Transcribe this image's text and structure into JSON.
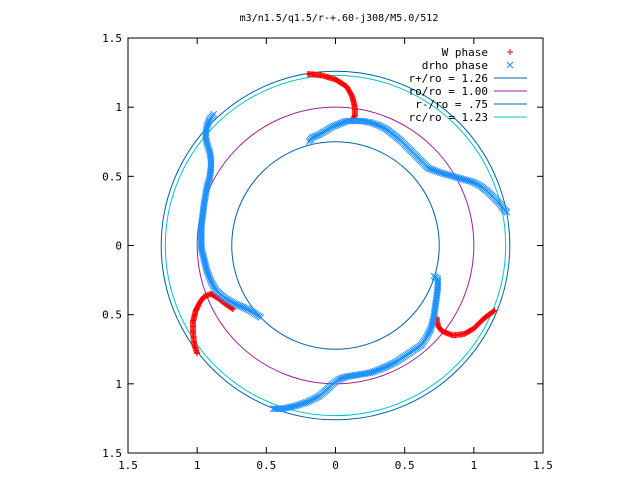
{
  "chart_data": {
    "type": "scatter",
    "title": "m3/n1.5/q1.5/r-+.60-j308/M5.0/512",
    "xlabel": "",
    "ylabel": "",
    "xlim": [
      -1.5,
      1.5
    ],
    "ylim": [
      -1.5,
      1.5
    ],
    "grid": false,
    "legend_position": "top-right",
    "x_ticks": [
      {
        "value": -1.5,
        "label": "1.5"
      },
      {
        "value": -1.0,
        "label": "1"
      },
      {
        "value": -0.5,
        "label": "0.5"
      },
      {
        "value": 0.0,
        "label": "0"
      },
      {
        "value": 0.5,
        "label": "0.5"
      },
      {
        "value": 1.0,
        "label": "1"
      },
      {
        "value": 1.5,
        "label": "1.5"
      }
    ],
    "y_ticks": [
      {
        "value": 1.5,
        "label": "1.5"
      },
      {
        "value": 1.0,
        "label": "1"
      },
      {
        "value": 0.5,
        "label": "0.5"
      },
      {
        "value": 0.0,
        "label": "0"
      },
      {
        "value": -0.5,
        "label": "0.5"
      },
      {
        "value": -1.0,
        "label": "1"
      },
      {
        "value": -1.5,
        "label": "1.5"
      }
    ],
    "circles": [
      {
        "label": "r+/ro = 1.26",
        "radius": 1.26,
        "color": "#0060ad"
      },
      {
        "label": "ro/ro = 1.00",
        "radius": 1.0,
        "color": "#a020a0"
      },
      {
        "label": "r-/ro = .75",
        "radius": 0.75,
        "color": "#0060ad"
      },
      {
        "label": "rc/ro = 1.23",
        "radius": 1.23,
        "color": "#00c8c8"
      }
    ],
    "series": [
      {
        "name": "W phase",
        "marker": "plus",
        "color": "#ff0000",
        "arms": [
          [
            [
              -0.2,
              1.24
            ],
            [
              -0.1,
              1.23
            ],
            [
              0.0,
              1.2
            ],
            [
              0.08,
              1.15
            ],
            [
              0.12,
              1.08
            ],
            [
              0.14,
              1.0
            ],
            [
              0.14,
              0.94
            ],
            [
              0.12,
              0.9
            ]
          ],
          [
            [
              1.15,
              -0.47
            ],
            [
              1.07,
              -0.53
            ],
            [
              1.0,
              -0.6
            ],
            [
              0.93,
              -0.64
            ],
            [
              0.85,
              -0.65
            ],
            [
              0.77,
              -0.62
            ],
            [
              0.74,
              -0.58
            ],
            [
              0.73,
              -0.52
            ]
          ],
          [
            [
              -1.0,
              -0.78
            ],
            [
              -1.02,
              -0.72
            ],
            [
              -1.03,
              -0.63
            ],
            [
              -1.03,
              -0.55
            ],
            [
              -1.01,
              -0.47
            ],
            [
              -0.98,
              -0.41
            ],
            [
              -0.95,
              -0.37
            ],
            [
              -0.9,
              -0.35
            ],
            [
              -0.85,
              -0.38
            ],
            [
              -0.8,
              -0.42
            ],
            [
              -0.74,
              -0.46
            ]
          ]
        ]
      },
      {
        "name": "drho phase",
        "marker": "cross",
        "color": "#1e90ff",
        "arms": [
          [
            [
              -0.19,
              0.75
            ],
            [
              -0.17,
              0.78
            ],
            [
              -0.12,
              0.8
            ],
            [
              -0.07,
              0.83
            ],
            [
              -0.02,
              0.86
            ],
            [
              0.03,
              0.88
            ],
            [
              0.08,
              0.9
            ],
            [
              0.13,
              0.9
            ],
            [
              0.19,
              0.9
            ],
            [
              0.25,
              0.89
            ],
            [
              0.31,
              0.87
            ],
            [
              0.37,
              0.84
            ],
            [
              0.42,
              0.8
            ],
            [
              0.47,
              0.76
            ],
            [
              0.52,
              0.71
            ],
            [
              0.57,
              0.66
            ],
            [
              0.62,
              0.61
            ],
            [
              0.67,
              0.56
            ],
            [
              0.72,
              0.54
            ],
            [
              0.78,
              0.52
            ],
            [
              0.85,
              0.5
            ],
            [
              0.92,
              0.48
            ],
            [
              0.99,
              0.46
            ],
            [
              1.05,
              0.43
            ],
            [
              1.1,
              0.39
            ],
            [
              1.14,
              0.35
            ],
            [
              1.18,
              0.31
            ],
            [
              1.21,
              0.27
            ],
            [
              1.24,
              0.24
            ]
          ],
          [
            [
              0.71,
              -0.22
            ],
            [
              0.74,
              -0.24
            ],
            [
              0.74,
              -0.3
            ],
            [
              0.73,
              -0.38
            ],
            [
              0.72,
              -0.45
            ],
            [
              0.71,
              -0.52
            ],
            [
              0.69,
              -0.6
            ],
            [
              0.66,
              -0.66
            ],
            [
              0.62,
              -0.72
            ],
            [
              0.56,
              -0.76
            ],
            [
              0.5,
              -0.8
            ],
            [
              0.44,
              -0.84
            ],
            [
              0.38,
              -0.87
            ],
            [
              0.31,
              -0.9
            ],
            [
              0.25,
              -0.92
            ],
            [
              0.19,
              -0.93
            ],
            [
              0.13,
              -0.94
            ],
            [
              0.07,
              -0.95
            ],
            [
              0.02,
              -0.97
            ],
            [
              -0.02,
              -1.0
            ],
            [
              -0.06,
              -1.04
            ],
            [
              -0.12,
              -1.09
            ],
            [
              -0.2,
              -1.13
            ],
            [
              -0.29,
              -1.16
            ],
            [
              -0.38,
              -1.18
            ],
            [
              -0.45,
              -1.18
            ]
          ],
          [
            [
              -0.88,
              0.95
            ],
            [
              -0.91,
              0.91
            ],
            [
              -0.93,
              0.86
            ],
            [
              -0.94,
              0.8
            ],
            [
              -0.93,
              0.74
            ],
            [
              -0.91,
              0.68
            ],
            [
              -0.9,
              0.62
            ],
            [
              -0.9,
              0.56
            ],
            [
              -0.91,
              0.49
            ],
            [
              -0.93,
              0.42
            ],
            [
              -0.94,
              0.36
            ],
            [
              -0.95,
              0.3
            ],
            [
              -0.96,
              0.22
            ],
            [
              -0.97,
              0.14
            ],
            [
              -0.97,
              0.06
            ],
            [
              -0.97,
              -0.02
            ],
            [
              -0.95,
              -0.1
            ],
            [
              -0.93,
              -0.18
            ],
            [
              -0.9,
              -0.26
            ],
            [
              -0.86,
              -0.33
            ],
            [
              -0.8,
              -0.38
            ],
            [
              -0.73,
              -0.42
            ],
            [
              -0.66,
              -0.45
            ],
            [
              -0.6,
              -0.48
            ],
            [
              -0.54,
              -0.52
            ]
          ]
        ]
      }
    ]
  }
}
